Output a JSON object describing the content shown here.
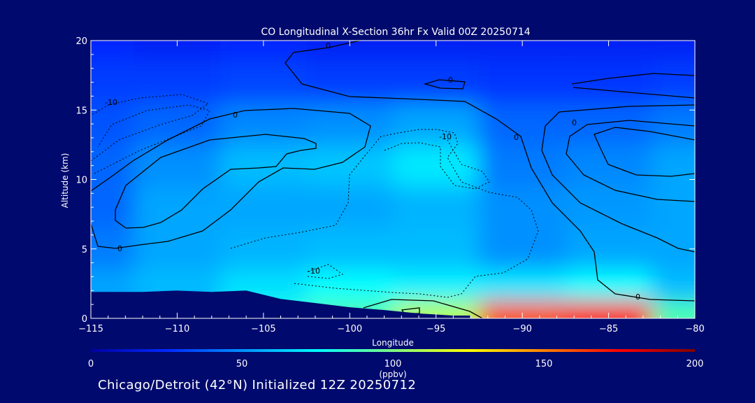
{
  "chart_data": {
    "type": "heatmap",
    "title": "CO Longitudinal X-Section 36hr  Fx Valid 00Z 20250714",
    "xlabel": "Longitude",
    "ylabel": "Altitude (km)",
    "xlim": [
      -115,
      -80
    ],
    "ylim": [
      0,
      20
    ],
    "x_ticks": [
      -115,
      -110,
      -105,
      -100,
      -95,
      -90,
      -85,
      -80
    ],
    "x_tick_labels": [
      "−115",
      "−110",
      "−105",
      "−100",
      "−95",
      "−90",
      "−85",
      "−80"
    ],
    "y_ticks": [
      0,
      5,
      10,
      15,
      20
    ],
    "y_tick_labels": [
      "0",
      "5",
      "10",
      "15",
      "20"
    ],
    "colorbar": {
      "min": 0,
      "max": 200,
      "ticks": [
        0,
        50,
        100,
        150,
        200
      ],
      "tick_labels": [
        "0",
        "50",
        "100",
        "150",
        "200"
      ],
      "unit": "(ppbv)",
      "colors": [
        "#0000a0",
        "#0028ff",
        "#0090ff",
        "#00ffff",
        "#80ff80",
        "#ffff00",
        "#ff8000",
        "#ff0000",
        "#800000"
      ]
    },
    "co_field_ppbv": {
      "longitudes": [
        -115,
        -110,
        -105,
        -100,
        -95,
        -90,
        -85,
        -80
      ],
      "altitudes_km": [
        0.5,
        2,
        5,
        8,
        11,
        14,
        17,
        20
      ],
      "values": [
        [
          50,
          55,
          80,
          90,
          110,
          160,
          170,
          90
        ],
        [
          55,
          60,
          68,
          75,
          72,
          70,
          75,
          60
        ],
        [
          45,
          55,
          58,
          60,
          60,
          50,
          55,
          55
        ],
        [
          40,
          55,
          55,
          55,
          58,
          50,
          52,
          55
        ],
        [
          40,
          50,
          60,
          62,
          70,
          45,
          48,
          55
        ],
        [
          35,
          40,
          48,
          50,
          55,
          40,
          40,
          45
        ],
        [
          30,
          30,
          32,
          30,
          30,
          28,
          28,
          30
        ],
        [
          25,
          22,
          25,
          22,
          22,
          22,
          22,
          22
        ]
      ]
    },
    "contour_labels": [
      "0",
      "0",
      "0",
      "0",
      "0",
      "0",
      "0",
      "-10",
      "-10",
      "-10"
    ],
    "terrain_km": {
      "longitudes": [
        -115,
        -112,
        -110,
        -108,
        -106,
        -104,
        -102,
        -100,
        -98,
        -96,
        -94,
        -93
      ],
      "altitudes": [
        1.9,
        1.9,
        2.0,
        1.9,
        2.0,
        1.4,
        1.1,
        0.8,
        0.6,
        0.35,
        0.2,
        0.2
      ]
    }
  },
  "footer": {
    "caption": "Chicago/Detroit (42°N) Initialized 12Z 20250712"
  }
}
